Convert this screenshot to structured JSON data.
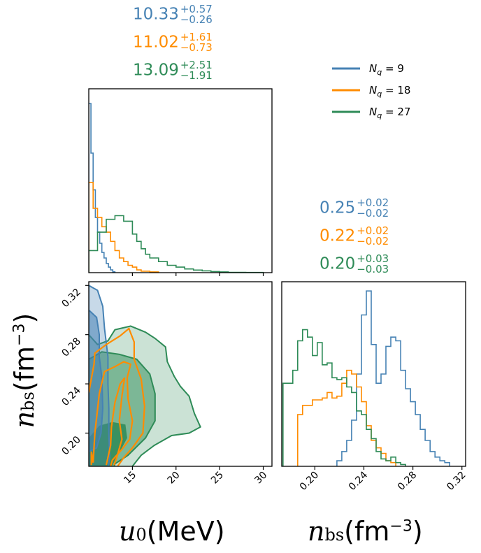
{
  "chart_data": {
    "type": "corner",
    "colors": {
      "Nq9": "#4682b4",
      "Nq18": "#ff8c00",
      "Nq27": "#2e8b57"
    },
    "legend": {
      "placement": "top-right",
      "entries": [
        {
          "key": "Nq9",
          "label_base": "N",
          "label_sub": "q",
          "label_rest": " = 9"
        },
        {
          "key": "Nq18",
          "label_base": "N",
          "label_sub": "q",
          "label_rest": " = 18"
        },
        {
          "key": "Nq27",
          "label_base": "N",
          "label_sub": "q",
          "label_rest": " = 27"
        }
      ]
    },
    "params": [
      {
        "name": "u0",
        "label_var": "u",
        "label_sub": "0",
        "label_unit": "(MeV)",
        "range": [
          10.0,
          31.0
        ],
        "ticks": [
          15,
          20,
          25,
          30
        ]
      },
      {
        "name": "nbs",
        "label_var": "n",
        "label_sub": "bs",
        "label_unit": "(fm",
        "label_sup": "−3",
        "label_close": ")",
        "range": [
          0.173,
          0.323
        ],
        "ticks": [
          0.2,
          0.24,
          0.28,
          0.32
        ]
      }
    ],
    "summaries": {
      "u0": [
        {
          "key": "Nq9",
          "median": "10.33",
          "plus": "+0.57",
          "minus": "−0.26"
        },
        {
          "key": "Nq18",
          "median": "11.02",
          "plus": "+1.61",
          "minus": "−0.73"
        },
        {
          "key": "Nq27",
          "median": "13.09",
          "plus": "+2.51",
          "minus": "−1.91"
        }
      ],
      "nbs": [
        {
          "key": "Nq9",
          "median": "0.25",
          "plus": "+0.02",
          "minus": "−0.02"
        },
        {
          "key": "Nq18",
          "median": "0.22",
          "plus": "+0.02",
          "minus": "−0.02"
        },
        {
          "key": "Nq27",
          "median": "0.20",
          "plus": "+0.03",
          "minus": "−0.03"
        }
      ]
    },
    "hist_u0": {
      "range": [
        10.0,
        31.0
      ],
      "ymax": 1.0,
      "series": [
        {
          "key": "Nq9",
          "bin_edges": [
            10.0,
            10.25,
            10.5,
            10.75,
            11.0,
            11.25,
            11.5,
            11.75,
            12.0,
            12.25,
            12.5,
            12.75,
            13.0
          ],
          "values": [
            0.92,
            0.65,
            0.45,
            0.3,
            0.22,
            0.16,
            0.11,
            0.08,
            0.05,
            0.03,
            0.015,
            0.005
          ]
        },
        {
          "key": "Nq18",
          "bin_edges": [
            10.0,
            10.5,
            11.0,
            11.5,
            12.0,
            12.5,
            13.0,
            13.5,
            14.0,
            14.5,
            15.0,
            15.5,
            16.0,
            17.0,
            18.0
          ],
          "values": [
            0.49,
            0.35,
            0.3,
            0.25,
            0.22,
            0.17,
            0.12,
            0.08,
            0.06,
            0.04,
            0.03,
            0.015,
            0.008,
            0.004
          ]
        },
        {
          "key": "Nq27",
          "bin_edges": [
            10.0,
            11.0,
            12.0,
            13.0,
            14.0,
            15.0,
            15.5,
            16.0,
            16.5,
            17.0,
            18.0,
            19.0,
            20.0,
            21.0,
            22.0,
            23.0,
            24.0,
            25.0,
            26.0,
            28.0,
            30.0
          ],
          "values": [
            0.12,
            0.22,
            0.29,
            0.31,
            0.28,
            0.21,
            0.17,
            0.13,
            0.1,
            0.08,
            0.06,
            0.04,
            0.03,
            0.02,
            0.014,
            0.01,
            0.006,
            0.004,
            0.002,
            0.001
          ]
        }
      ]
    },
    "hist_nbs": {
      "range": [
        0.173,
        0.323
      ],
      "ymax": 1.0,
      "series": [
        {
          "key": "Nq9",
          "bin_edges": [
            0.218,
            0.222,
            0.226,
            0.23,
            0.234,
            0.238,
            0.242,
            0.246,
            0.25,
            0.254,
            0.258,
            0.262,
            0.266,
            0.27,
            0.274,
            0.278,
            0.282,
            0.286,
            0.29,
            0.294,
            0.298,
            0.302,
            0.306,
            0.31
          ],
          "values": [
            0.03,
            0.08,
            0.14,
            0.25,
            0.5,
            0.82,
            0.95,
            0.66,
            0.45,
            0.5,
            0.65,
            0.7,
            0.68,
            0.52,
            0.42,
            0.35,
            0.28,
            0.2,
            0.14,
            0.08,
            0.05,
            0.03,
            0.02
          ]
        },
        {
          "key": "Nq18",
          "bin_edges": [
            0.186,
            0.19,
            0.194,
            0.198,
            0.202,
            0.206,
            0.21,
            0.214,
            0.218,
            0.222,
            0.226,
            0.23,
            0.234,
            0.238,
            0.242,
            0.246,
            0.25,
            0.254,
            0.258,
            0.262,
            0.266
          ],
          "values": [
            0.28,
            0.33,
            0.33,
            0.36,
            0.36,
            0.37,
            0.4,
            0.37,
            0.38,
            0.45,
            0.52,
            0.5,
            0.43,
            0.35,
            0.22,
            0.14,
            0.1,
            0.07,
            0.03,
            0.02
          ]
        },
        {
          "key": "Nq27",
          "bin_edges": [
            0.174,
            0.178,
            0.182,
            0.186,
            0.19,
            0.194,
            0.198,
            0.202,
            0.206,
            0.21,
            0.214,
            0.218,
            0.222,
            0.226,
            0.23,
            0.234,
            0.238,
            0.242,
            0.246,
            0.25,
            0.254,
            0.258,
            0.262,
            0.266,
            0.27,
            0.274
          ],
          "values": [
            0.45,
            0.45,
            0.52,
            0.68,
            0.74,
            0.7,
            0.6,
            0.67,
            0.55,
            0.56,
            0.48,
            0.47,
            0.48,
            0.43,
            0.4,
            0.3,
            0.28,
            0.2,
            0.15,
            0.08,
            0.04,
            0.03,
            0.05,
            0.02,
            0.01
          ]
        }
      ]
    },
    "contours_2d": [
      {
        "key": "Nq27",
        "fill_alpha": 0.25,
        "stroke": true,
        "points": [
          [
            10.0,
            0.17
          ],
          [
            10.0,
            0.28
          ],
          [
            11.0,
            0.272
          ],
          [
            12.2,
            0.275
          ],
          [
            13.0,
            0.284
          ],
          [
            14.8,
            0.287
          ],
          [
            16.5,
            0.282
          ],
          [
            17.6,
            0.277
          ],
          [
            18.8,
            0.27
          ],
          [
            19.0,
            0.258
          ],
          [
            19.8,
            0.246
          ],
          [
            20.5,
            0.238
          ],
          [
            21.5,
            0.23
          ],
          [
            22.1,
            0.216
          ],
          [
            22.8,
            0.205
          ],
          [
            21.5,
            0.2
          ],
          [
            19.5,
            0.198
          ],
          [
            17.5,
            0.19
          ],
          [
            16.0,
            0.182
          ],
          [
            15.0,
            0.173
          ],
          [
            14.5,
            0.17
          ]
        ]
      },
      {
        "key": "Nq27",
        "fill_alpha": 0.5,
        "stroke": true,
        "points": [
          [
            10.0,
            0.17
          ],
          [
            10.0,
            0.26
          ],
          [
            11.5,
            0.266
          ],
          [
            13.5,
            0.264
          ],
          [
            15.5,
            0.26
          ],
          [
            17.0,
            0.248
          ],
          [
            17.6,
            0.232
          ],
          [
            17.6,
            0.21
          ],
          [
            16.5,
            0.196
          ],
          [
            14.5,
            0.182
          ],
          [
            13.0,
            0.175
          ],
          [
            12.8,
            0.17
          ]
        ]
      },
      {
        "key": "Nq27",
        "fill_alpha": 0.85,
        "stroke": false,
        "points": [
          [
            10.0,
            0.17
          ],
          [
            10.0,
            0.196
          ],
          [
            11.2,
            0.206
          ],
          [
            12.7,
            0.209
          ],
          [
            14.2,
            0.207
          ],
          [
            14.4,
            0.196
          ],
          [
            13.5,
            0.184
          ],
          [
            12.4,
            0.17
          ]
        ]
      },
      {
        "key": "Nq9",
        "fill_alpha": 0.3,
        "stroke": true,
        "points": [
          [
            10.0,
            0.17
          ],
          [
            10.0,
            0.32
          ],
          [
            11.0,
            0.316
          ],
          [
            11.6,
            0.303
          ],
          [
            11.8,
            0.285
          ],
          [
            12.2,
            0.262
          ],
          [
            12.2,
            0.24
          ],
          [
            12.3,
            0.22
          ],
          [
            12.3,
            0.2
          ],
          [
            12.4,
            0.18
          ],
          [
            12.2,
            0.17
          ]
        ]
      },
      {
        "key": "Nq9",
        "fill_alpha": 0.55,
        "stroke": true,
        "points": [
          [
            10.0,
            0.185
          ],
          [
            10.0,
            0.3
          ],
          [
            10.9,
            0.294
          ],
          [
            11.2,
            0.28
          ],
          [
            11.2,
            0.262
          ],
          [
            11.5,
            0.245
          ],
          [
            11.6,
            0.22
          ],
          [
            11.4,
            0.2
          ],
          [
            10.9,
            0.188
          ]
        ]
      }
    ],
    "contour_lines_2d": [
      {
        "key": "Nq18",
        "points": [
          [
            10.0,
            0.233
          ],
          [
            10.6,
            0.256
          ],
          [
            10.7,
            0.265
          ],
          [
            12.0,
            0.272
          ],
          [
            13.6,
            0.279
          ],
          [
            14.6,
            0.285
          ],
          [
            15.2,
            0.274
          ],
          [
            15.2,
            0.26
          ],
          [
            16.0,
            0.244
          ],
          [
            16.4,
            0.222
          ],
          [
            16.2,
            0.2
          ],
          [
            15.0,
            0.188
          ],
          [
            14.0,
            0.18
          ],
          [
            13.3,
            0.173
          ]
        ]
      },
      {
        "key": "Nq18",
        "points": [
          [
            10.5,
            0.176
          ],
          [
            10.7,
            0.2
          ],
          [
            11.2,
            0.232
          ],
          [
            11.8,
            0.25
          ],
          [
            13.0,
            0.254
          ],
          [
            14.0,
            0.258
          ],
          [
            14.8,
            0.256
          ],
          [
            14.4,
            0.245
          ],
          [
            14.5,
            0.228
          ],
          [
            15.0,
            0.21
          ],
          [
            14.7,
            0.195
          ],
          [
            13.7,
            0.186
          ],
          [
            12.7,
            0.178
          ],
          [
            12.5,
            0.173
          ]
        ]
      },
      {
        "key": "Nq18",
        "points": [
          [
            12.0,
            0.174
          ],
          [
            12.5,
            0.19
          ],
          [
            12.6,
            0.205
          ],
          [
            13.0,
            0.225
          ],
          [
            13.6,
            0.24
          ],
          [
            14.1,
            0.245
          ],
          [
            13.8,
            0.23
          ],
          [
            13.5,
            0.21
          ],
          [
            13.8,
            0.195
          ],
          [
            13.2,
            0.18
          ],
          [
            12.9,
            0.174
          ]
        ]
      },
      {
        "key": "Nq18",
        "points": [
          [
            10.3,
            0.174
          ],
          [
            10.3,
            0.185
          ],
          [
            10.5,
            0.176
          ]
        ]
      }
    ]
  }
}
